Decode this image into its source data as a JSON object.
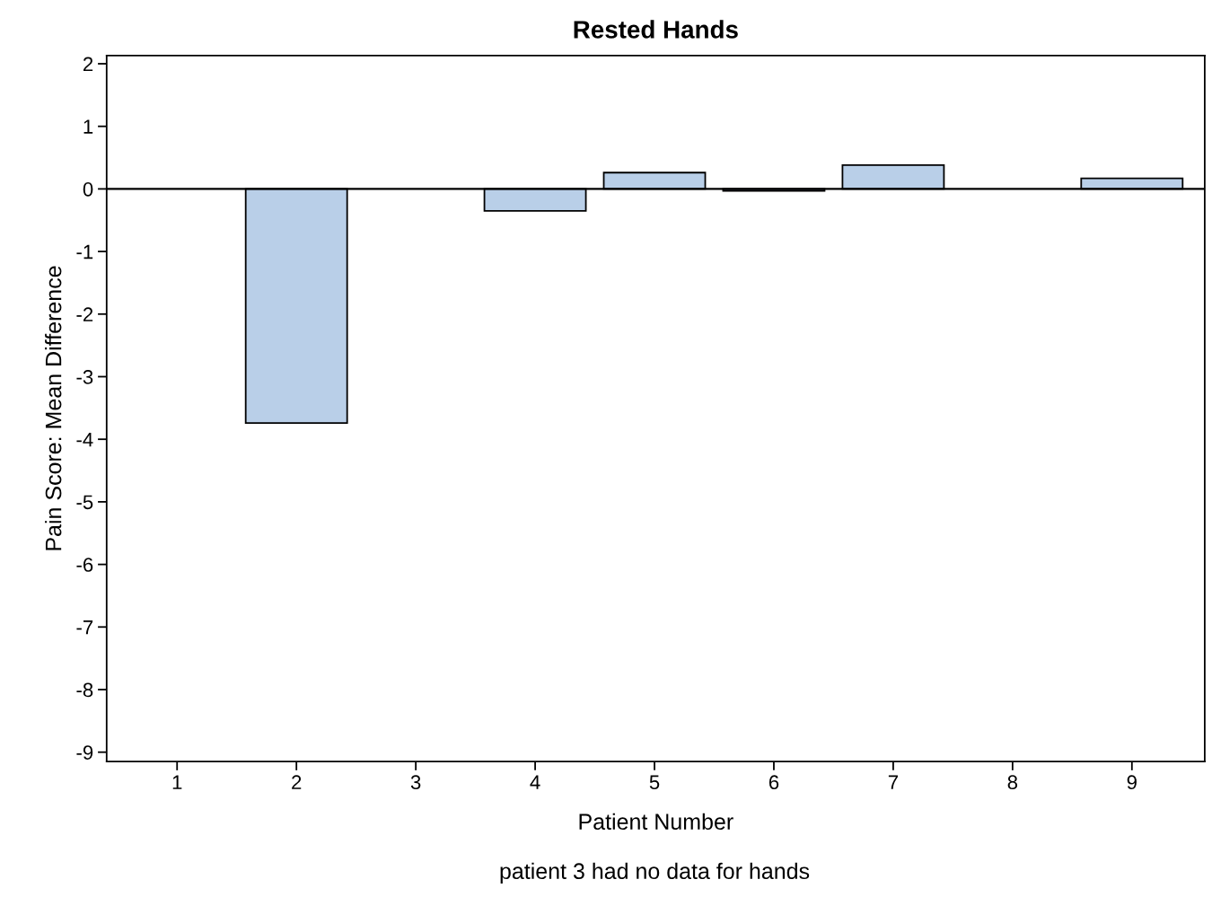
{
  "chart_data": {
    "type": "bar",
    "title": "Rested Hands",
    "xlabel": "Patient Number",
    "ylabel": "Pain Score: Mean Difference",
    "annotations": [
      "patient 3 had no data for hands"
    ],
    "categories": [
      "1",
      "2",
      "3",
      "4",
      "5",
      "6",
      "7",
      "8",
      "9"
    ],
    "values": [
      null,
      -3.74,
      null,
      -0.35,
      0.26,
      -0.03,
      0.38,
      null,
      0.17
    ],
    "color": "#b9cfe8",
    "ylim": [
      -9.15,
      2.13
    ],
    "yticks": [
      -9,
      -8,
      -7,
      -6,
      -5,
      -4,
      -3,
      -2,
      -1,
      0,
      1,
      2
    ],
    "ref_lines": [
      {
        "axis": "y",
        "value": 0,
        "color": "#000000"
      }
    ],
    "grid": false,
    "legend": false
  }
}
